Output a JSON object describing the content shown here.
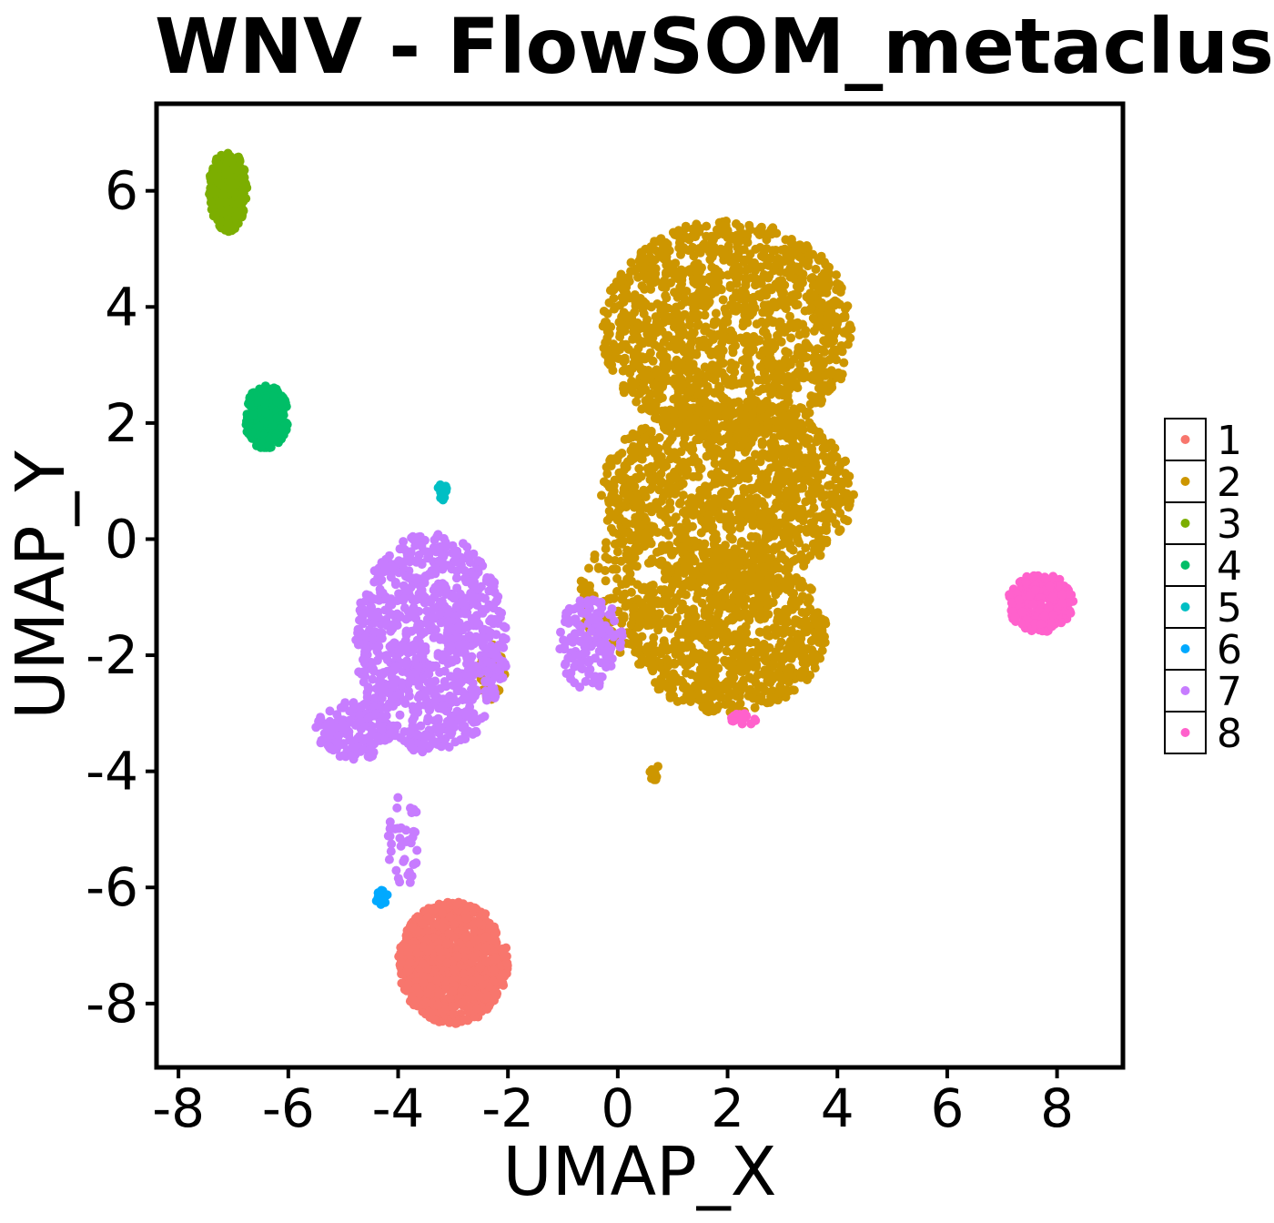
{
  "chart_data": {
    "type": "scatter",
    "title": "WNV - FlowSOM_metaclus",
    "xlabel": "UMAP_X",
    "ylabel": "UMAP_Y",
    "xlim": [
      -8.4,
      9.2
    ],
    "ylim": [
      -9.1,
      7.5
    ],
    "xticks": [
      -8,
      -6,
      -4,
      -2,
      0,
      2,
      4,
      6,
      8
    ],
    "xtick_labels": [
      "-8",
      "-6",
      "-4",
      "-2",
      "0",
      "2",
      "4",
      "6",
      "8"
    ],
    "yticks": [
      -8,
      -6,
      -4,
      -2,
      0,
      2,
      4,
      6
    ],
    "ytick_labels": [
      "-8",
      "-6",
      "-4",
      "-2",
      "0",
      "2",
      "4",
      "6"
    ],
    "grid": false,
    "legend_position": "right",
    "series": [
      {
        "name": "1",
        "color": "#F8766D",
        "clusters": [
          {
            "cx": -3.0,
            "cy": -7.3,
            "rx": 1.0,
            "ry": 1.05,
            "n": 900
          }
        ]
      },
      {
        "name": "2",
        "color": "#CD9600",
        "clusters": [
          {
            "cx": 2.0,
            "cy": 3.6,
            "rx": 2.3,
            "ry": 1.9,
            "n": 1400
          },
          {
            "cx": 2.0,
            "cy": 0.8,
            "rx": 2.3,
            "ry": 1.6,
            "n": 1200
          },
          {
            "cx": 2.0,
            "cy": -1.6,
            "rx": 1.8,
            "ry": 1.4,
            "n": 900
          },
          {
            "cx": -0.1,
            "cy": -1.0,
            "rx": 0.6,
            "ry": 1.0,
            "n": 120
          },
          {
            "cx": -2.3,
            "cy": -2.3,
            "rx": 0.25,
            "ry": 0.5,
            "n": 40
          },
          {
            "cx": 0.7,
            "cy": -4.0,
            "rx": 0.15,
            "ry": 0.15,
            "n": 8
          }
        ]
      },
      {
        "name": "3",
        "color": "#7CAE00",
        "clusters": [
          {
            "cx": -7.1,
            "cy": 6.0,
            "rx": 0.35,
            "ry": 0.7,
            "n": 320
          }
        ]
      },
      {
        "name": "4",
        "color": "#00BE67",
        "clusters": [
          {
            "cx": -6.4,
            "cy": 2.1,
            "rx": 0.4,
            "ry": 0.55,
            "n": 280
          }
        ]
      },
      {
        "name": "5",
        "color": "#00BFC4",
        "clusters": [
          {
            "cx": -3.2,
            "cy": 0.8,
            "rx": 0.1,
            "ry": 0.15,
            "n": 10
          }
        ]
      },
      {
        "name": "6",
        "color": "#00A9FF",
        "clusters": [
          {
            "cx": -4.3,
            "cy": -6.2,
            "rx": 0.12,
            "ry": 0.15,
            "n": 12
          }
        ]
      },
      {
        "name": "7",
        "color": "#C77CFF",
        "clusters": [
          {
            "cx": -3.4,
            "cy": -1.8,
            "rx": 1.4,
            "ry": 1.9,
            "n": 900
          },
          {
            "cx": -4.8,
            "cy": -3.3,
            "rx": 0.7,
            "ry": 0.5,
            "n": 150
          },
          {
            "cx": -3.9,
            "cy": -5.2,
            "rx": 0.3,
            "ry": 0.8,
            "n": 40
          },
          {
            "cx": -0.5,
            "cy": -1.8,
            "rx": 0.6,
            "ry": 0.8,
            "n": 150
          }
        ]
      },
      {
        "name": "8",
        "color": "#FF61CC",
        "clusters": [
          {
            "cx": 7.7,
            "cy": -1.1,
            "rx": 0.6,
            "ry": 0.5,
            "n": 260
          },
          {
            "cx": 2.3,
            "cy": -3.1,
            "rx": 0.25,
            "ry": 0.1,
            "n": 20
          }
        ]
      }
    ]
  }
}
